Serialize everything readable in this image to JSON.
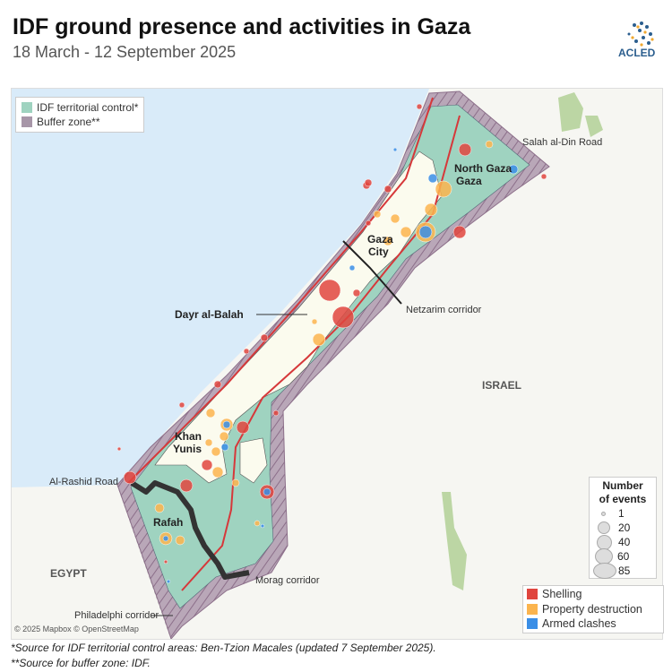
{
  "header": {
    "title": "IDF ground presence and activities in Gaza",
    "subtitle": "18 March - 12 September 2025",
    "logo_text": "ACLED"
  },
  "legend_areas": [
    {
      "label": "IDF territorial control*",
      "color": "#9fd3c0"
    },
    {
      "label": "Buffer zone**",
      "color": "#a796a8"
    }
  ],
  "legend_size": {
    "title_line1": "Number",
    "title_line2": "of events",
    "values": [
      "1",
      "20",
      "40",
      "60",
      "85"
    ]
  },
  "legend_categories": [
    {
      "label": "Shelling",
      "color": "#e0453e"
    },
    {
      "label": "Property destruction",
      "color": "#fbb44e"
    },
    {
      "label": "Armed clashes",
      "color": "#3a8ee6"
    }
  ],
  "map": {
    "places": [
      "North Gaza",
      "Gaza",
      "Gaza City",
      "Dayr al-Balah",
      "Khan",
      "Yunis",
      "Rafah"
    ],
    "countries": [
      "ISRAEL",
      "EGYPT"
    ],
    "roads": [
      "Salah al-Din Road",
      "Netzarim corridor",
      "Al-Rashid Road",
      "Morag corridor",
      "Philadelphi corridor"
    ],
    "credit": "© 2025 Mapbox © OpenStreetMap",
    "colors": {
      "sea": "#d9ebf9",
      "land": "#f6f6f2",
      "control": "#9fd3c0",
      "uncontrolled": "#fbfbee",
      "road": "#d6383a",
      "corridor": "#333333"
    }
  },
  "footnotes": [
    "*Source for IDF territorial control areas: Ben-Tzion Macales (updated 7 September 2025).",
    "**Source for buffer zone: IDF."
  ]
}
